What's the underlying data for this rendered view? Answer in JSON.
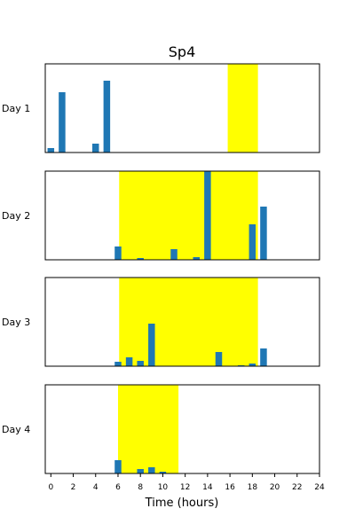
{
  "chart_data": {
    "type": "bar",
    "title": "Sp4",
    "xlabel": "Time (hours)",
    "ylabel": "",
    "xlim": [
      -0.5,
      24
    ],
    "x_ticks": [
      0,
      2,
      4,
      6,
      8,
      10,
      12,
      14,
      16,
      18,
      20,
      22,
      24
    ],
    "grid": false,
    "bar_color": "#1f77b4",
    "highlight_color": "#ffff00",
    "panels": [
      {
        "label": "Day 1",
        "ymax": 1.0,
        "highlight": [
          15.8,
          18.5
        ],
        "bars": [
          {
            "x": 0,
            "value": 0.05
          },
          {
            "x": 1,
            "value": 0.68
          },
          {
            "x": 4,
            "value": 0.1
          },
          {
            "x": 5,
            "value": 0.81
          }
        ]
      },
      {
        "label": "Day 2",
        "ymax": 1.0,
        "highlight": [
          6.1,
          18.5
        ],
        "bars": [
          {
            "x": 6,
            "value": 0.15
          },
          {
            "x": 8,
            "value": 0.02
          },
          {
            "x": 11,
            "value": 0.12
          },
          {
            "x": 13,
            "value": 0.03
          },
          {
            "x": 14,
            "value": 1.0
          },
          {
            "x": 18,
            "value": 0.4
          },
          {
            "x": 19,
            "value": 0.6
          }
        ]
      },
      {
        "label": "Day 3",
        "ymax": 1.0,
        "highlight": [
          6.1,
          18.5
        ],
        "bars": [
          {
            "x": 6,
            "value": 0.05
          },
          {
            "x": 7,
            "value": 0.1
          },
          {
            "x": 8,
            "value": 0.06
          },
          {
            "x": 9,
            "value": 0.48
          },
          {
            "x": 15,
            "value": 0.16
          },
          {
            "x": 17,
            "value": 0.01
          },
          {
            "x": 18,
            "value": 0.03
          },
          {
            "x": 19,
            "value": 0.2
          }
        ]
      },
      {
        "label": "Day 4",
        "ymax": 1.0,
        "highlight": [
          6.0,
          11.4
        ],
        "bars": [
          {
            "x": 6,
            "value": 0.15
          },
          {
            "x": 8,
            "value": 0.05
          },
          {
            "x": 9,
            "value": 0.07
          },
          {
            "x": 10,
            "value": 0.02
          }
        ]
      }
    ]
  }
}
